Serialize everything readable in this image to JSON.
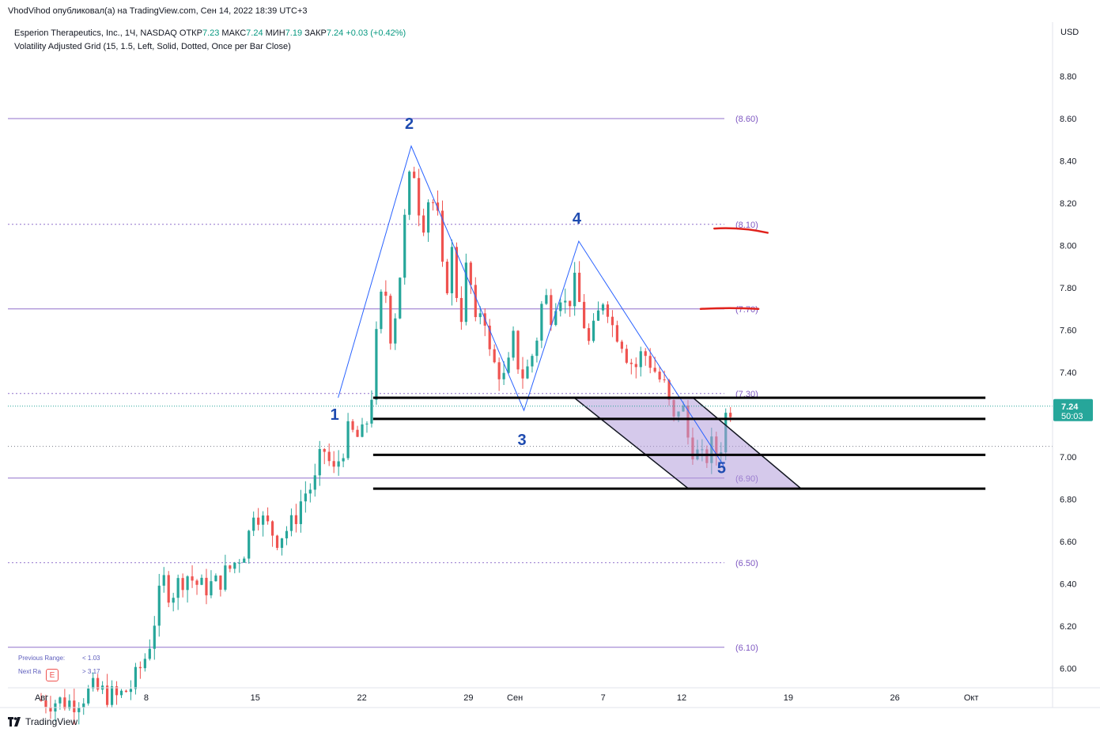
{
  "publisher_line": "VhodVihod опубликовал(а) на TradingView.com, Сен 14, 2022 18:39 UTC+3",
  "legend": {
    "symbol": "Esperion Therapeutics, Inc., 1Ч, NASDAQ",
    "open_label": "ОТКР",
    "open": "7.23",
    "high_label": "МАКС",
    "high": "7.24",
    "low_label": "МИН",
    "low": "7.19",
    "close_label": "ЗАКР",
    "close": "7.24",
    "change": "+0.03 (+0.42%)",
    "indicator": "Volatility Adjusted Grid (15, 1.5, Left, Solid, Dotted, Once per Bar Close)"
  },
  "range_info": {
    "prev_label": "Previous Range:",
    "prev_value": "< 1.03",
    "next_label": "Next Ra",
    "next_value": "> 3.17",
    "earnings_badge": "E"
  },
  "footer": {
    "brand": "TradingView"
  },
  "colors": {
    "up": "#26a69a",
    "down": "#ef5350",
    "wave": "#2962ff",
    "grid_line": "#7e57c2",
    "channel_fill": "#b39ddb",
    "price_tag": "#26a69a",
    "red_mark": "#e0221c"
  },
  "chart_data": {
    "type": "candlestick",
    "currency_label": "USD",
    "y_ticks": [
      "8.80",
      "8.60",
      "8.40",
      "8.20",
      "8.00",
      "7.80",
      "7.60",
      "7.40",
      "7.20",
      "7.00",
      "6.80",
      "6.60",
      "6.40",
      "6.20",
      "6.00"
    ],
    "ylim": [
      5.91,
      9.05
    ],
    "x_ticks": [
      {
        "label": "Авг",
        "day": 0
      },
      {
        "label": "8",
        "day": 7
      },
      {
        "label": "15",
        "day": 14
      },
      {
        "label": "22",
        "day": 21
      },
      {
        "label": "29",
        "day": 28
      },
      {
        "label": "Сен",
        "day": 31
      },
      {
        "label": "7",
        "day": 37
      },
      {
        "label": "12",
        "day": 42
      },
      {
        "label": "19",
        "day": 49
      },
      {
        "label": "26",
        "day": 56
      },
      {
        "label": "Окт",
        "day": 61
      }
    ],
    "grid_levels": [
      {
        "price": 8.6,
        "label": "(8.60)",
        "style": "solid"
      },
      {
        "price": 8.1,
        "label": "(8.10)",
        "style": "dotted"
      },
      {
        "price": 7.7,
        "label": "(7.70)",
        "style": "solid"
      },
      {
        "price": 7.3,
        "label": "(7.30)",
        "style": "dotted"
      },
      {
        "price": 6.9,
        "label": "(6.90)",
        "style": "solid"
      },
      {
        "price": 6.5,
        "label": "(6.50)",
        "style": "dotted"
      },
      {
        "price": 6.1,
        "label": "(6.10)",
        "style": "solid"
      }
    ],
    "current_price": {
      "price": 7.24,
      "label": "7.24",
      "countdown": "50:03"
    },
    "secondary_dotted_level": 7.05,
    "wave_points": [
      {
        "day": 19.5,
        "price": 7.28,
        "label": "1"
      },
      {
        "day": 24.3,
        "price": 8.47,
        "label": "2"
      },
      {
        "day": 31.7,
        "price": 7.22,
        "label": "3"
      },
      {
        "day": 35.3,
        "price": 8.02,
        "label": "4"
      },
      {
        "day": 44.8,
        "price": 6.96,
        "label": "5"
      }
    ],
    "black_levels": [
      7.28,
      7.18,
      7.01,
      6.85
    ],
    "black_level_start_day": 21.8,
    "black_level_end_day": 62.0,
    "channel": {
      "top_left": {
        "day": 35.0,
        "price": 7.28
      },
      "top_right": {
        "day": 42.8,
        "price": 7.28
      },
      "bottom_right": {
        "day": 49.9,
        "price": 6.85
      },
      "bottom_left": {
        "day": 42.5,
        "price": 6.85
      }
    },
    "red_marks": [
      {
        "day_start": 44.2,
        "day_end": 47.7,
        "price_start": 8.08,
        "price_end": 8.06
      },
      {
        "day_start": 43.3,
        "day_end": 47.1,
        "price_start": 7.7,
        "price_end": 7.7
      }
    ],
    "candles_anchor": [
      [
        0,
        5.85
      ],
      [
        2,
        5.84
      ],
      [
        3.5,
        5.9
      ],
      [
        5,
        5.86
      ],
      [
        6,
        5.92
      ],
      [
        7,
        6.08
      ],
      [
        7.5,
        6.25
      ],
      [
        8,
        6.42
      ],
      [
        8.5,
        6.35
      ],
      [
        9.5,
        6.45
      ],
      [
        10.5,
        6.38
      ],
      [
        11.5,
        6.4
      ],
      [
        12.5,
        6.48
      ],
      [
        13.5,
        6.58
      ],
      [
        14,
        6.78
      ],
      [
        14.5,
        6.7
      ],
      [
        15.5,
        6.62
      ],
      [
        16.5,
        6.68
      ],
      [
        17.2,
        6.82
      ],
      [
        18,
        6.88
      ],
      [
        18.5,
        7.05
      ],
      [
        19.2,
        6.92
      ],
      [
        20.2,
        7.12
      ],
      [
        21,
        7.08
      ],
      [
        21.6,
        7.22
      ],
      [
        22,
        7.55
      ],
      [
        22.5,
        7.85
      ],
      [
        23,
        7.55
      ],
      [
        23.5,
        7.82
      ],
      [
        24,
        8.22
      ],
      [
        24.4,
        8.4
      ],
      [
        25,
        8.08
      ],
      [
        25.5,
        8.25
      ],
      [
        26,
        8.15
      ],
      [
        26.5,
        7.75
      ],
      [
        27,
        7.98
      ],
      [
        27.5,
        7.62
      ],
      [
        28,
        7.95
      ],
      [
        28.5,
        7.6
      ],
      [
        29,
        7.75
      ],
      [
        29.5,
        7.45
      ],
      [
        30,
        7.42
      ],
      [
        30.5,
        7.35
      ],
      [
        31,
        7.55
      ],
      [
        31.5,
        7.38
      ],
      [
        32,
        7.42
      ],
      [
        32.5,
        7.55
      ],
      [
        33,
        7.78
      ],
      [
        33.5,
        7.68
      ],
      [
        34,
        7.8
      ],
      [
        34.5,
        7.7
      ],
      [
        35,
        7.82
      ],
      [
        35.5,
        7.68
      ],
      [
        36,
        7.52
      ],
      [
        36.5,
        7.65
      ],
      [
        37,
        7.78
      ],
      [
        37.5,
        7.62
      ],
      [
        38,
        7.58
      ],
      [
        38.5,
        7.48
      ],
      [
        39,
        7.42
      ],
      [
        39.5,
        7.5
      ],
      [
        40,
        7.45
      ],
      [
        40.5,
        7.38
      ],
      [
        41,
        7.32
      ],
      [
        41.5,
        7.15
      ],
      [
        42,
        7.28
      ],
      [
        42.5,
        7.08
      ],
      [
        43,
        7.02
      ],
      [
        43.5,
        6.97
      ],
      [
        44,
        7.05
      ],
      [
        44.5,
        7.0
      ],
      [
        45,
        7.22
      ],
      [
        45.3,
        7.24
      ]
    ]
  }
}
